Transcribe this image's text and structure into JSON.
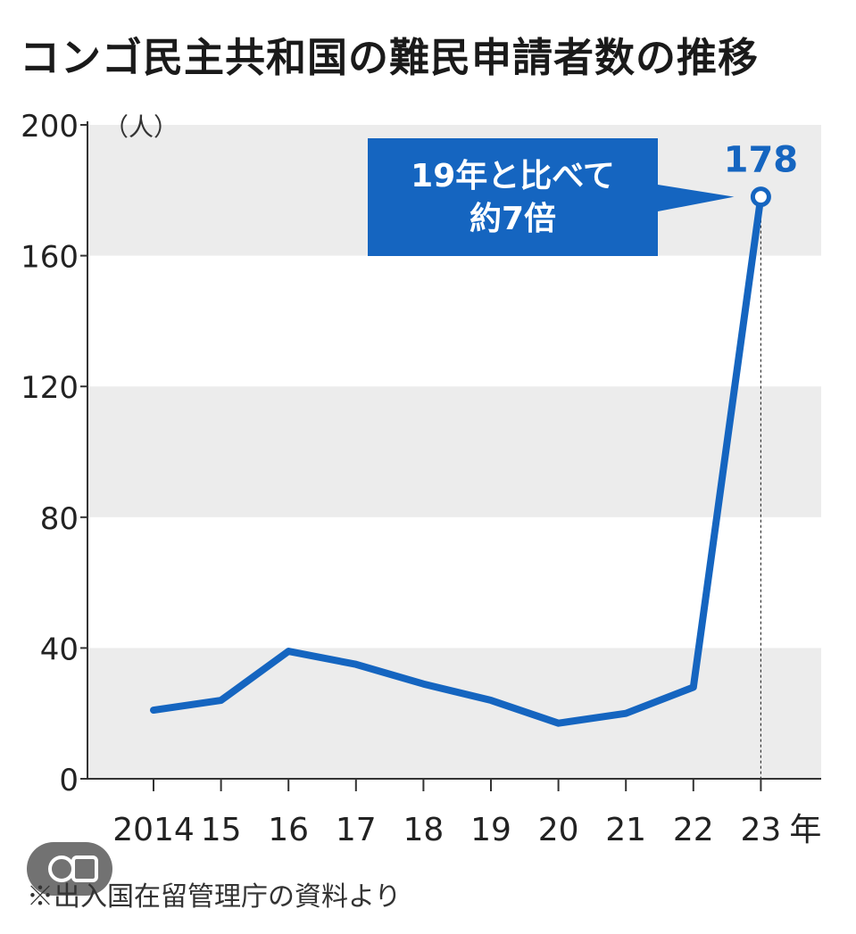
{
  "chart_data": {
    "type": "line",
    "title": "コンゴ民主共和国の難民申請者数の推移",
    "ylabel": "（人）",
    "xunit": "年",
    "categories": [
      "2014",
      "15",
      "16",
      "17",
      "18",
      "19",
      "20",
      "21",
      "22",
      "23"
    ],
    "series": [
      {
        "values": [
          21,
          24,
          39,
          35,
          29,
          24,
          17,
          20,
          28,
          178
        ]
      }
    ],
    "ylim": [
      0,
      200
    ],
    "yticks": [
      "0",
      "40",
      "80",
      "120",
      "160",
      "200"
    ],
    "grid": "alternating horizontal bands",
    "highlight": {
      "label": "178",
      "callout": [
        "19年と比べて",
        "約7倍"
      ]
    },
    "colors": {
      "line": "#1565c0",
      "band": "#ececec",
      "callout_bg": "#1565c0",
      "callout_text": "#ffffff"
    }
  },
  "source_note": "※出入国在留管理庁の資料より"
}
